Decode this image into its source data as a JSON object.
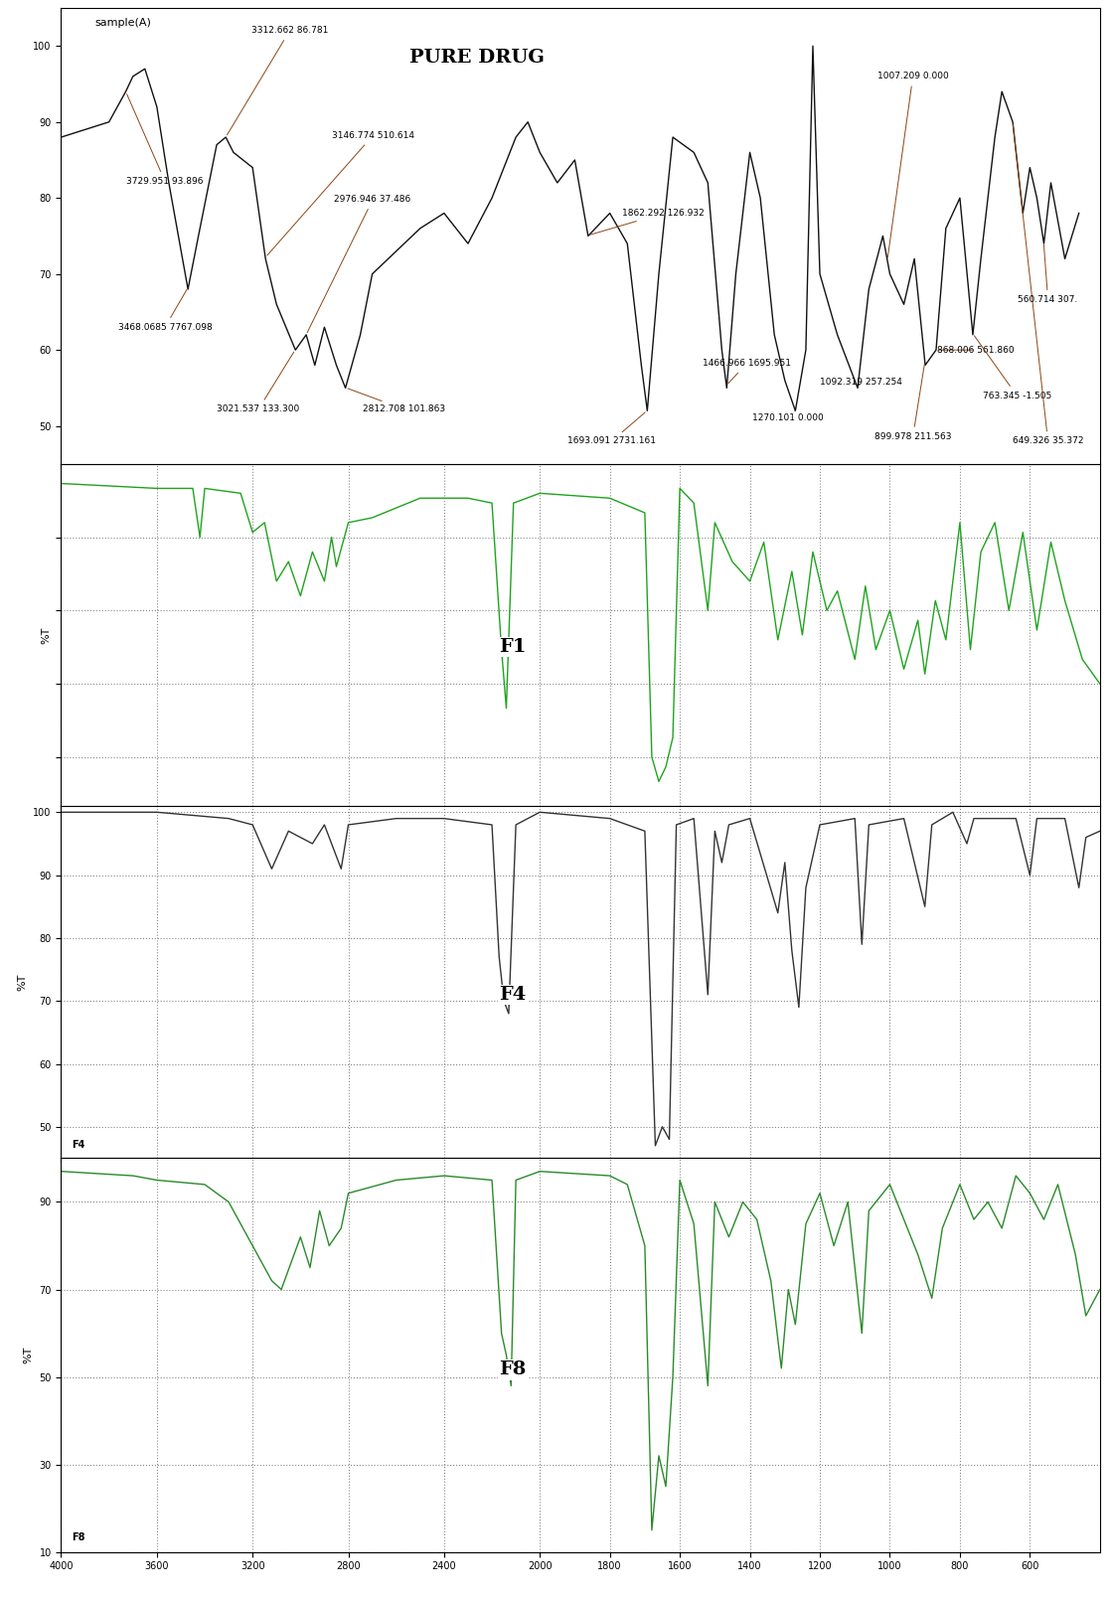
{
  "chart_data": [
    {
      "type": "line",
      "title": "PURE DRUG",
      "subtitle": "sample(A)",
      "color": "#111111",
      "xlim": [
        4000,
        400
      ],
      "ylim": [
        45,
        105
      ],
      "yticks": [
        50,
        60,
        70,
        80,
        90,
        100
      ],
      "xticks": [
        4000,
        3600,
        3200,
        2800,
        2400,
        2000,
        1800,
        1600,
        1400,
        1200,
        1000,
        800,
        600
      ],
      "tick_labels": "y",
      "grid": false,
      "x": [
        4000,
        3900,
        3800,
        3730,
        3700,
        3650,
        3600,
        3550,
        3470,
        3420,
        3350,
        3312,
        3280,
        3200,
        3146,
        3100,
        3021,
        2976,
        2940,
        2900,
        2850,
        2812,
        2750,
        2700,
        2600,
        2500,
        2400,
        2300,
        2200,
        2100,
        2050,
        2000,
        1950,
        1900,
        1862,
        1800,
        1750,
        1710,
        1693,
        1660,
        1620,
        1560,
        1520,
        1480,
        1466,
        1440,
        1400,
        1370,
        1330,
        1300,
        1270,
        1240,
        1220,
        1200,
        1150,
        1092,
        1060,
        1020,
        1000,
        960,
        930,
        899,
        868,
        840,
        800,
        763,
        740,
        700,
        680,
        649,
        620,
        600,
        580,
        560,
        540,
        500,
        460
      ],
      "values": [
        88,
        89,
        90,
        94,
        96,
        97,
        92,
        82,
        68,
        76,
        87,
        88,
        86,
        84,
        72,
        66,
        60,
        62,
        58,
        63,
        58,
        55,
        62,
        70,
        73,
        76,
        78,
        74,
        80,
        88,
        90,
        86,
        82,
        85,
        75,
        78,
        74,
        58,
        52,
        70,
        88,
        86,
        82,
        60,
        55,
        70,
        86,
        80,
        62,
        56,
        52,
        60,
        100,
        70,
        62,
        55,
        68,
        75,
        70,
        66,
        72,
        58,
        60,
        76,
        80,
        62,
        72,
        88,
        94,
        90,
        78,
        84,
        80,
        74,
        82,
        72,
        78
      ],
      "annotations": [
        "3729.951 93.896",
        "3312.662 86.781",
        "3468.0685 7767.098",
        "3146.774 510.614",
        "2976.946 37.486",
        "3021.537 133.300",
        "2812.708 101.863",
        "1862.292 126.932",
        "1693.091 2731.161",
        "1466.966 1695.951",
        "1270.101 0.000",
        "1092.319 257.254",
        "1007.209 0.000",
        "899.978 211.563",
        "868.006 561.860",
        "763.345 -1.505",
        "649.326 35.372",
        "560.714 307."
      ]
    },
    {
      "type": "line",
      "title": "F1",
      "y_label": "%T",
      "color": "#1fa31f",
      "xlim": [
        4000,
        400
      ],
      "ylim": [
        30,
        100
      ],
      "yticks": [
        40,
        55,
        70,
        85
      ],
      "xticks": [
        4000,
        3600,
        3200,
        2800,
        2400,
        2000,
        1800,
        1600,
        1400,
        1200,
        1000,
        800,
        600
      ],
      "tick_labels": false,
      "grid": true,
      "x": [
        4000,
        3600,
        3450,
        3420,
        3400,
        3250,
        3200,
        3150,
        3100,
        3050,
        3000,
        2950,
        2900,
        2870,
        2850,
        2800,
        2700,
        2500,
        2300,
        2200,
        2160,
        2140,
        2110,
        2000,
        1800,
        1700,
        1680,
        1660,
        1640,
        1620,
        1600,
        1560,
        1520,
        1500,
        1450,
        1400,
        1360,
        1320,
        1280,
        1250,
        1220,
        1180,
        1150,
        1100,
        1070,
        1040,
        1000,
        960,
        920,
        900,
        870,
        840,
        800,
        770,
        740,
        700,
        660,
        620,
        580,
        540,
        500,
        450,
        400
      ],
      "values": [
        96,
        95,
        95,
        85,
        95,
        94,
        86,
        88,
        76,
        80,
        73,
        82,
        76,
        85,
        79,
        88,
        89,
        93,
        93,
        92,
        62,
        50,
        92,
        94,
        93,
        90,
        40,
        35,
        38,
        44,
        95,
        92,
        70,
        88,
        80,
        76,
        84,
        64,
        78,
        65,
        82,
        70,
        74,
        60,
        75,
        62,
        70,
        58,
        68,
        57,
        72,
        64,
        88,
        62,
        82,
        88,
        70,
        86,
        66,
        84,
        72,
        60,
        55
      ]
    },
    {
      "type": "line",
      "title": "F4",
      "subtitle": "F4",
      "y_label": "%T",
      "color": "#333333",
      "xlim": [
        4000,
        400
      ],
      "ylim": [
        45,
        101
      ],
      "yticks": [
        50,
        60,
        70,
        80,
        90,
        100
      ],
      "xticks": [
        4000,
        3600,
        3200,
        2800,
        2400,
        2000,
        1800,
        1600,
        1400,
        1200,
        1000,
        800,
        600
      ],
      "tick_labels": "y",
      "grid": true,
      "x": [
        4000,
        3600,
        3300,
        3200,
        3120,
        3050,
        2950,
        2900,
        2830,
        2800,
        2600,
        2400,
        2200,
        2170,
        2150,
        2130,
        2100,
        2000,
        1800,
        1700,
        1670,
        1650,
        1630,
        1610,
        1560,
        1520,
        1500,
        1480,
        1460,
        1400,
        1320,
        1300,
        1280,
        1260,
        1240,
        1200,
        1100,
        1080,
        1060,
        960,
        900,
        880,
        820,
        780,
        760,
        640,
        600,
        580,
        500,
        460,
        440,
        400
      ],
      "values": [
        100,
        100,
        99,
        98,
        91,
        97,
        95,
        98,
        91,
        98,
        99,
        99,
        98,
        77,
        70,
        68,
        98,
        100,
        99,
        97,
        47,
        50,
        48,
        98,
        99,
        71,
        97,
        92,
        98,
        99,
        84,
        92,
        78,
        69,
        88,
        98,
        99,
        79,
        98,
        99,
        85,
        98,
        100,
        95,
        99,
        99,
        90,
        99,
        99,
        88,
        96,
        97
      ]
    },
    {
      "type": "line",
      "title": "F8",
      "subtitle": "F8",
      "y_label": "%T",
      "color": "#2a8a2a",
      "xlim": [
        4000,
        400
      ],
      "ylim": [
        10,
        100
      ],
      "yticks": [
        10,
        30,
        50,
        70,
        90
      ],
      "xticks": [
        4000,
        3600,
        3200,
        2800,
        2400,
        2000,
        1800,
        1600,
        1400,
        1200,
        1000,
        800,
        600
      ],
      "grid": true,
      "x": [
        4000,
        3700,
        3600,
        3400,
        3300,
        3200,
        3120,
        3080,
        3000,
        2960,
        2920,
        2880,
        2830,
        2800,
        2600,
        2400,
        2200,
        2160,
        2140,
        2120,
        2100,
        2000,
        1800,
        1750,
        1700,
        1680,
        1660,
        1640,
        1620,
        1600,
        1560,
        1520,
        1500,
        1460,
        1420,
        1380,
        1340,
        1310,
        1290,
        1270,
        1240,
        1200,
        1160,
        1120,
        1080,
        1060,
        1000,
        960,
        920,
        880,
        850,
        800,
        760,
        720,
        680,
        640,
        600,
        560,
        520,
        470,
        440,
        400
      ],
      "values": [
        97,
        96,
        95,
        94,
        90,
        80,
        72,
        70,
        82,
        75,
        88,
        80,
        84,
        92,
        95,
        96,
        95,
        60,
        55,
        48,
        95,
        97,
        96,
        94,
        80,
        15,
        32,
        25,
        50,
        95,
        85,
        48,
        90,
        82,
        90,
        86,
        72,
        52,
        70,
        62,
        85,
        92,
        80,
        90,
        60,
        88,
        94,
        86,
        78,
        68,
        84,
        94,
        86,
        90,
        84,
        96,
        92,
        86,
        94,
        78,
        64,
        70
      ]
    }
  ]
}
